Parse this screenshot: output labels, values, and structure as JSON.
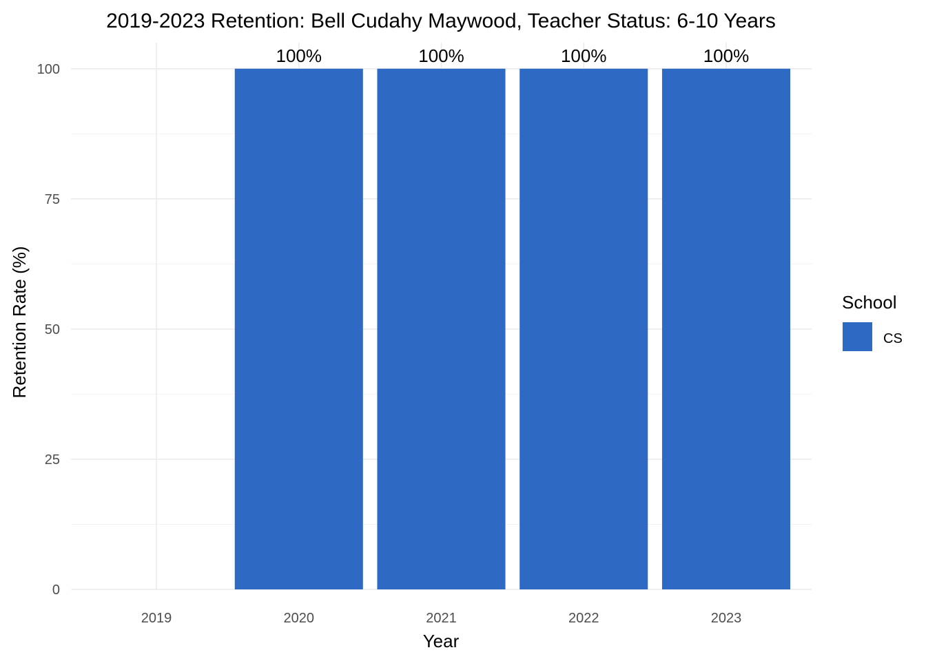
{
  "chart_data": {
    "type": "bar",
    "title": "2019-2023 Retention: Bell Cudahy Maywood, Teacher Status: 6-10 Years",
    "xlabel": "Year",
    "ylabel": "Retention Rate (%)",
    "categories": [
      "2019",
      "2020",
      "2021",
      "2022",
      "2023"
    ],
    "series": [
      {
        "name": "CS",
        "values": [
          null,
          100,
          100,
          100,
          100
        ],
        "color": "#2e69c3"
      }
    ],
    "data_labels": [
      "",
      "100%",
      "100%",
      "100%",
      "100%"
    ],
    "yticks": [
      0,
      25,
      50,
      75,
      100
    ],
    "ylim": [
      0,
      105
    ],
    "grid": true,
    "legend": {
      "title": "School",
      "position": "right"
    }
  }
}
